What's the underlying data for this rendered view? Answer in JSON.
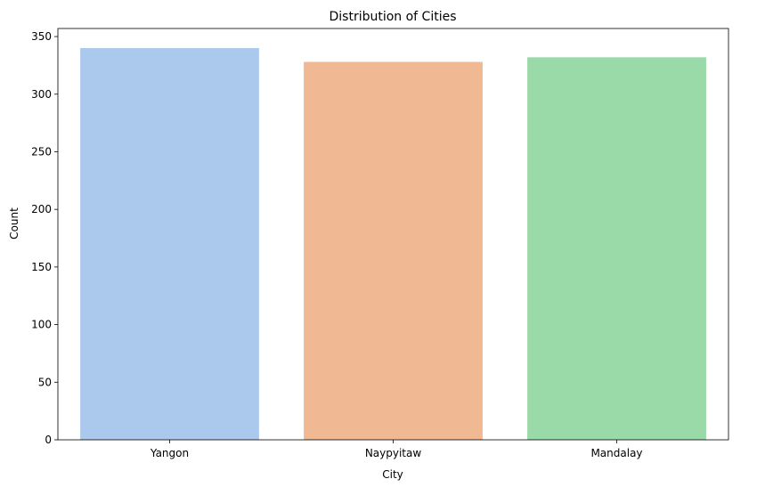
{
  "chart_data": {
    "type": "bar",
    "title": "Distribution of Cities",
    "xlabel": "City",
    "ylabel": "Count",
    "categories": [
      "Yangon",
      "Naypyitaw",
      "Mandalay"
    ],
    "values": [
      340,
      328,
      332
    ],
    "colors": [
      "#abc9ed",
      "#f0b893",
      "#9ad9a8"
    ],
    "ylim": [
      0,
      357
    ],
    "yticks": [
      0,
      50,
      100,
      150,
      200,
      250,
      300,
      350
    ],
    "grid": false,
    "legend": "none"
  }
}
